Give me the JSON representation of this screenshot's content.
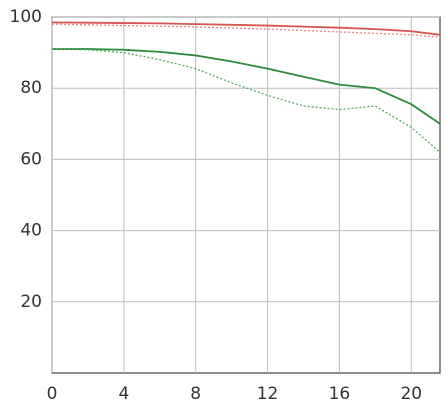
{
  "chart_data": {
    "type": "line",
    "x": [
      0,
      2,
      4,
      6,
      8,
      10,
      12,
      14,
      16,
      18,
      20,
      21.6
    ],
    "series": [
      {
        "color": "#d9534f",
        "style": "solid",
        "values": [
          98.5,
          98.4,
          98.3,
          98.2,
          98,
          97.8,
          97.6,
          97.3,
          97,
          96.6,
          96,
          95
        ]
      },
      {
        "color": "#e8857f",
        "style": "dotted",
        "values": [
          98,
          97.8,
          97.6,
          97.4,
          97.2,
          96.9,
          96.6,
          96.2,
          95.8,
          95.4,
          95,
          94.3
        ]
      },
      {
        "color": "#2e8b3e",
        "style": "solid",
        "values": [
          91,
          91,
          90.8,
          90.2,
          89.2,
          87.5,
          85.5,
          83.2,
          81,
          80,
          75.5,
          70
        ]
      },
      {
        "color": "#5aa862",
        "style": "dotted",
        "values": [
          91,
          90.8,
          90,
          88,
          85.5,
          81.5,
          78,
          75,
          74,
          75,
          69,
          62
        ]
      }
    ],
    "xlim": [
      0,
      21.6
    ],
    "xticks": [
      0,
      4,
      8,
      12,
      16,
      20
    ],
    "ylim": [
      0,
      100
    ],
    "yticks": [
      20,
      40,
      60,
      80,
      100
    ],
    "grid": true
  }
}
